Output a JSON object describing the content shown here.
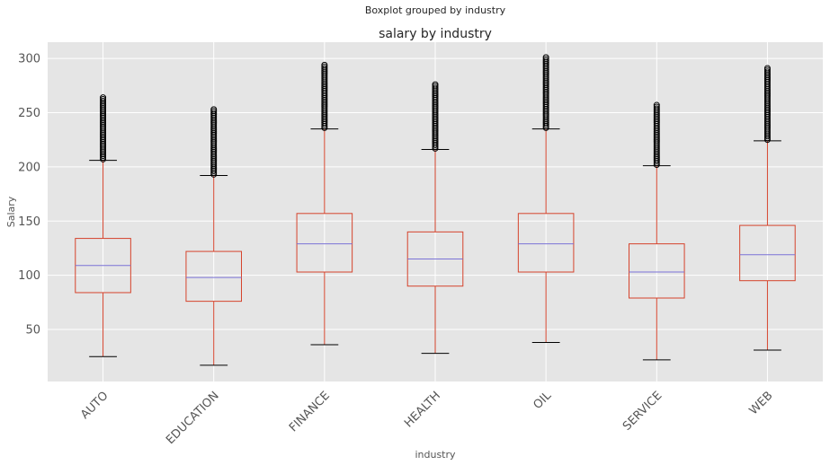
{
  "chart_data": {
    "type": "boxplot",
    "suptitle": "Boxplot grouped by industry",
    "title": "salary by industry",
    "xlabel": "industry",
    "ylabel": "Salary",
    "ylim": [
      2,
      315
    ],
    "yticks": [
      50,
      100,
      150,
      200,
      250,
      300
    ],
    "categories": [
      "AUTO",
      "EDUCATION",
      "FINANCE",
      "HEALTH",
      "OIL",
      "SERVICE",
      "WEB"
    ],
    "boxes": [
      {
        "whislo": 25,
        "q1": 84,
        "med": 109,
        "q3": 134,
        "whishi": 206,
        "fliers_max": 264
      },
      {
        "whislo": 17,
        "q1": 76,
        "med": 98,
        "q3": 122,
        "whishi": 192,
        "fliers_max": 253
      },
      {
        "whislo": 36,
        "q1": 103,
        "med": 129,
        "q3": 157,
        "whishi": 235,
        "fliers_max": 294
      },
      {
        "whislo": 28,
        "q1": 90,
        "med": 115,
        "q3": 140,
        "whishi": 216,
        "fliers_max": 276
      },
      {
        "whislo": 38,
        "q1": 103,
        "med": 129,
        "q3": 157,
        "whishi": 235,
        "fliers_max": 301
      },
      {
        "whislo": 22,
        "q1": 79,
        "med": 103,
        "q3": 129,
        "whishi": 201,
        "fliers_max": 257
      },
      {
        "whislo": 31,
        "q1": 95,
        "med": 119,
        "q3": 146,
        "whishi": 224,
        "fliers_max": 291
      }
    ],
    "grid": true,
    "colors": {
      "plot_bg": "#e5e5e5",
      "grid": "#ffffff",
      "box": "#d5432c",
      "median": "#7b73d6",
      "whisker_cap": "#000000",
      "flier": "#000000"
    }
  }
}
